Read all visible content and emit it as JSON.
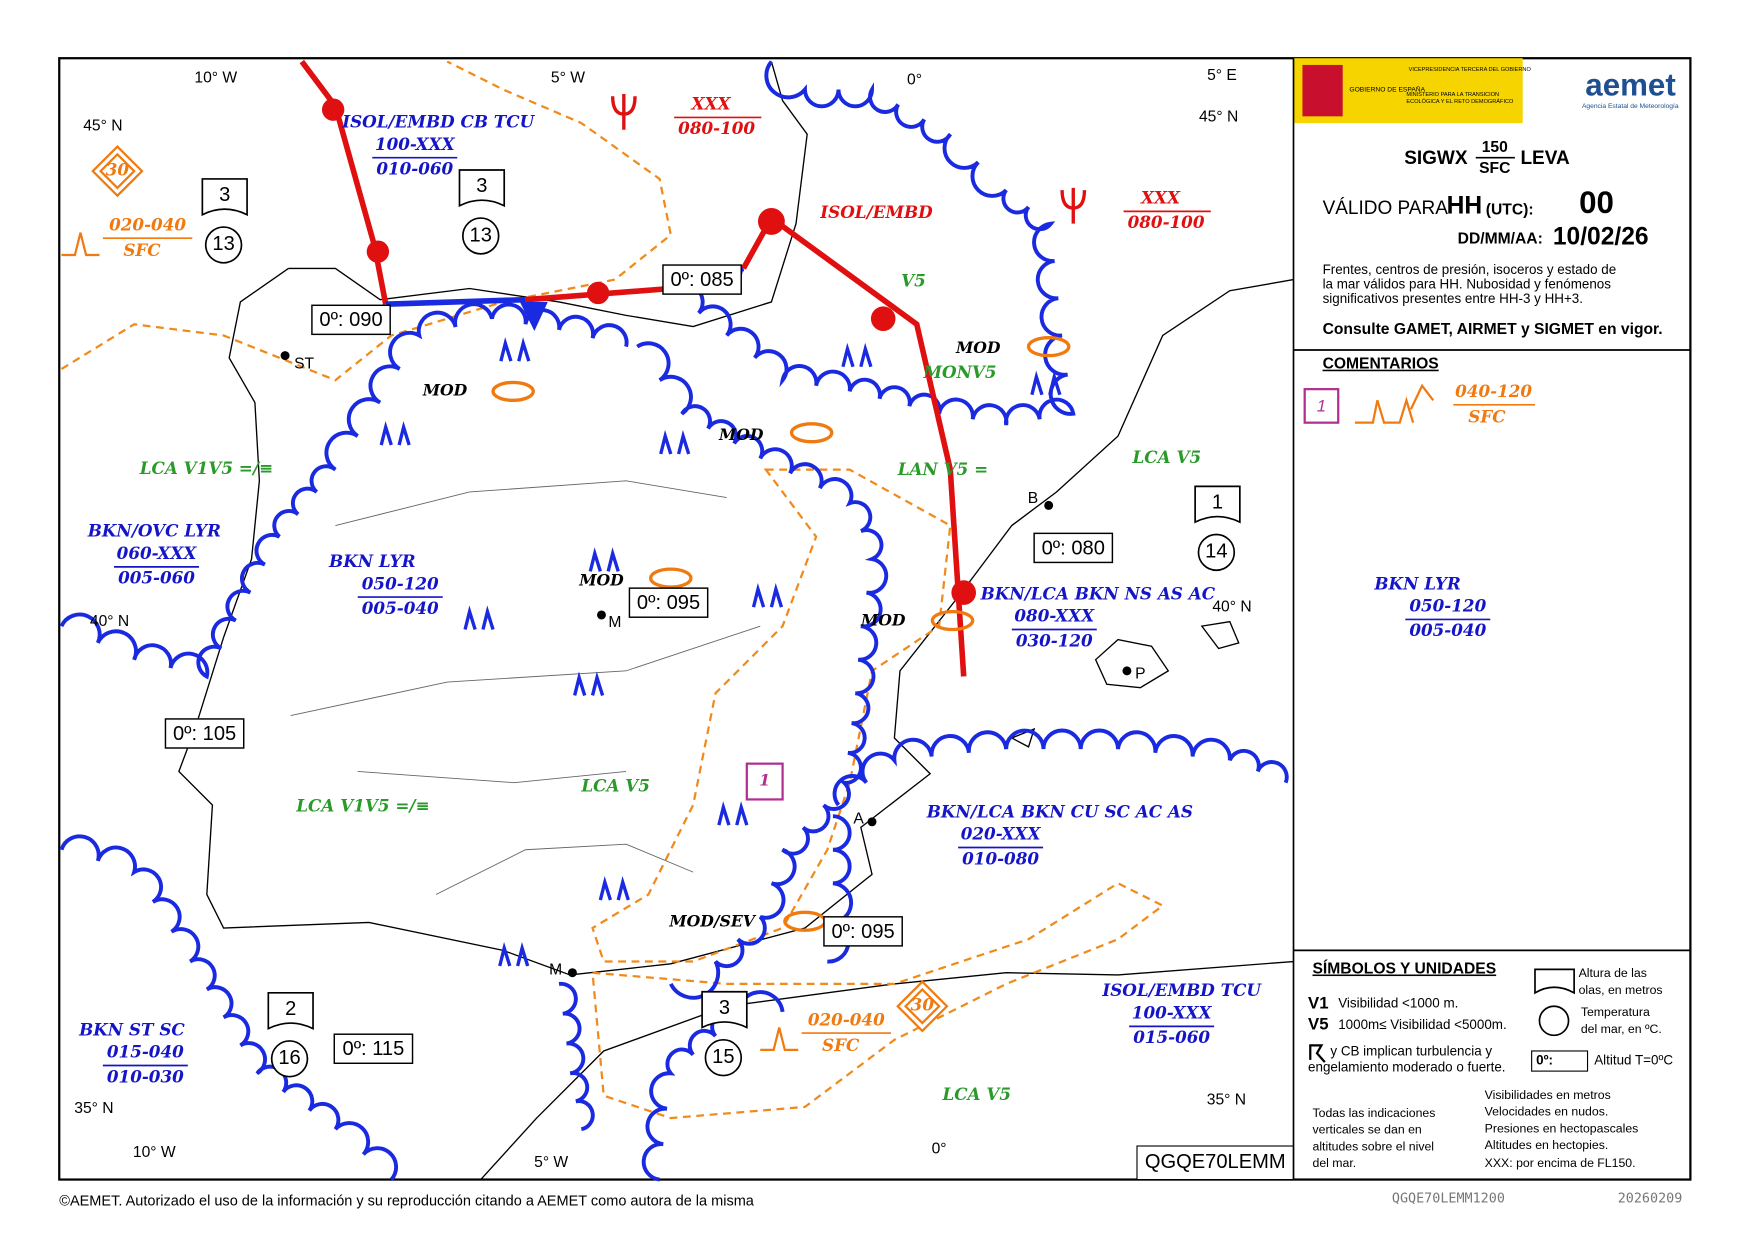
{
  "panel": {
    "logos": {
      "gov": "GOBIERNO DE ESPAÑA",
      "vice": "VICEPRESIDENCIA TERCERA DEL GOBIERNO",
      "ministry": "MINISTERIO PARA LA TRANSICIÓN ECOLÓGICA Y EL RETO DEMOGRÁFICO",
      "aemet": "aemet",
      "agency": "Agencia Estatal de Meteorología"
    },
    "product": "SIGWX",
    "level_top": "150",
    "level_bottom": "SFC",
    "region": "LEVA",
    "valid_label": "VÁLIDO PARA",
    "hh": "HH",
    "utc": "(UTC):",
    "hour": "00",
    "date_label": "DD/MM/AA:",
    "date": "10/02/26",
    "description": [
      "Frentes, centros de presión, isoceros y estado de",
      "la mar válidos para HH. Nubosidad y fenómenos",
      "significativos presentes entre HH-3 y HH+3."
    ],
    "consult": "Consulte GAMET, AIRMET y SIGMET en vigor.",
    "comments_title": "COMENTARIOS",
    "comment": {
      "id": "1",
      "top": "040-120",
      "base": "SFC"
    }
  },
  "legend": {
    "title": "SÍMBOLOS Y UNIDADES",
    "v1": "V1",
    "v1_text": "Visibilidad <1000 m.",
    "v5": "V5",
    "v5_text": "1000m≤ Visibilidad <5000m.",
    "cb": [
      "y CB implican turbulencia y",
      "engelamiento moderado o fuerte."
    ],
    "wave": [
      "Altura de las",
      "olas, en metros"
    ],
    "temp": [
      "Temperatura",
      "del mar, en ºC."
    ],
    "fz": "0º:",
    "fz_text": "Altitud T=0ºC",
    "notes_left": [
      "Todas las indicaciones",
      "verticales se dan en",
      "altitudes sobre el nivel",
      "del mar."
    ],
    "notes_right": [
      "Visibilidades en metros",
      "Velocidades en nudos.",
      "Presiones en hectopascales",
      "Altitudes en hectopies.",
      "XXX: por encima de FL150."
    ],
    "bulletin": "QGQE70LEMM"
  },
  "map": {
    "grid_labels": [
      "10° W",
      "5° W",
      "0°",
      "5° E",
      "45° N",
      "45° N",
      "40° N",
      "40° N",
      "35° N",
      "35° N",
      "10° W",
      "5° W",
      "0°"
    ],
    "cloud_areas": [
      {
        "text": "ISOL/EMBD CB TCU",
        "top": "100-XXX",
        "base": "010-060"
      },
      {
        "text": "BKN/OVC LYR",
        "top": "060-XXX",
        "base": "005-060"
      },
      {
        "text": "BKN LYR",
        "top": "050-120",
        "base": "005-040"
      },
      {
        "text": "BKN/LCA BKN NS AS AC",
        "top": "080-XXX",
        "base": "030-120"
      },
      {
        "text": "BKN LYR",
        "top": "050-120",
        "base": "005-040"
      },
      {
        "text": "BKN/LCA BKN CU SC AC AS",
        "top": "020-XXX",
        "base": "010-080"
      },
      {
        "text": "ISOL/EMBD TCU",
        "top": "100-XXX",
        "base": "015-060"
      },
      {
        "text": "BKN ST SC",
        "top": "015-040",
        "base": "010-030"
      }
    ],
    "cb_areas": [
      {
        "top": "XXX",
        "base": "080-100"
      },
      {
        "top": "XXX",
        "base": "080-100"
      }
    ],
    "isol_embd": "ISOL/EMBD",
    "turb_layers": [
      {
        "top": "020-040",
        "base": "SFC"
      },
      {
        "top": "020-040",
        "base": "SFC"
      }
    ],
    "max_waves": [
      "30",
      "30"
    ],
    "sea_states": [
      {
        "wave": "3",
        "temp": "13"
      },
      {
        "wave": "3",
        "temp": "13"
      },
      {
        "wave": "1",
        "temp": "14"
      },
      {
        "wave": "2",
        "temp": "16"
      },
      {
        "wave": "3",
        "temp": "15"
      }
    ],
    "freezing_levels": [
      "0º: 090",
      "0º: 085",
      "0º: 080",
      "0º: 095",
      "0º: 105",
      "0º: 095",
      "0º: 115"
    ],
    "visibility": [
      "LCA  V1V5 =/≡",
      "LCA  V5",
      "LCA  V1V5 =/≡",
      "LAN  V5 =",
      "LCA  V5",
      "LCA  V5",
      "V5",
      "MONV5"
    ],
    "turbulence": [
      "MOD",
      "MOD",
      "MOD",
      "MOD",
      "MOD",
      "MOD/SEV"
    ],
    "cities": [
      "ST",
      "M",
      "B",
      "P",
      "A",
      "M"
    ],
    "comment_ref": "1"
  },
  "footer": {
    "copyright": "©AEMET. Autorizado el uso de la información y su reproducción citando a AEMET como autora de la misma",
    "file": "QGQE70LEMM1200",
    "stamp": "20260209"
  }
}
